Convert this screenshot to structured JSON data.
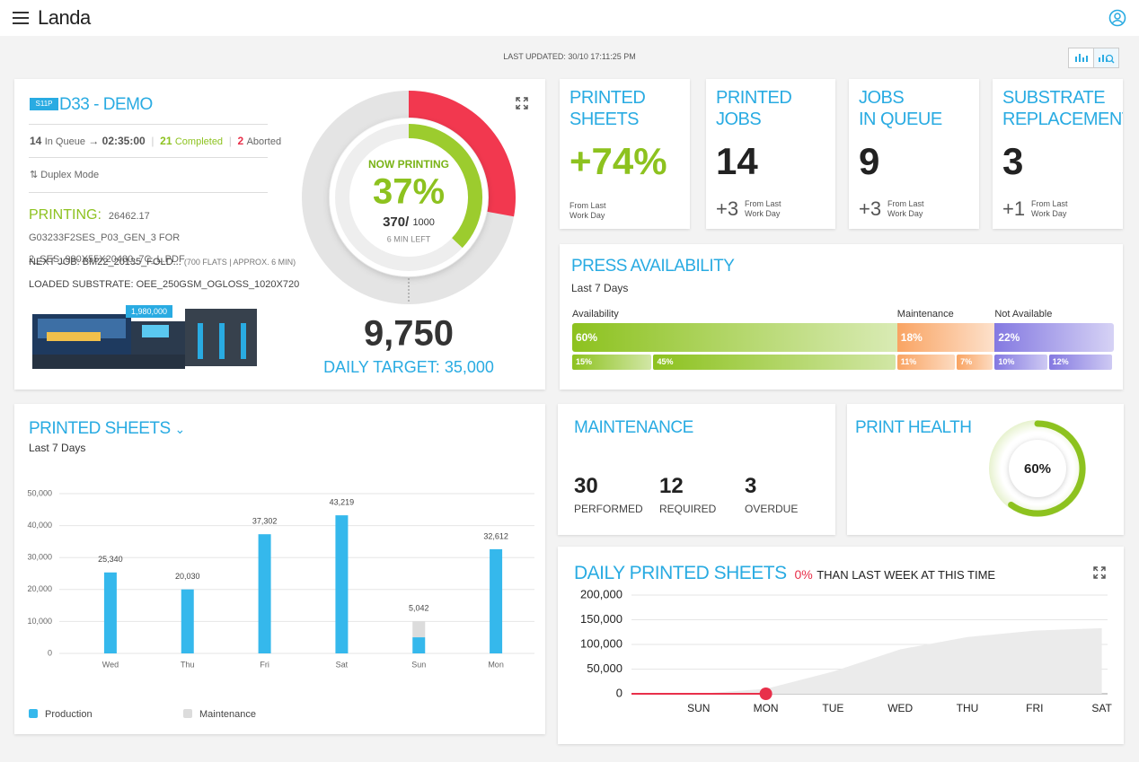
{
  "header": {
    "logo": "Landa"
  },
  "last_updated": "LAST UPDATED: 30/10 17:11:25 PM",
  "press": {
    "badge": "S11P",
    "name": "D33 - DEMO",
    "in_queue": "14",
    "in_queue_label": "In Queue",
    "time": "02:35:00",
    "completed": "21",
    "completed_label": "Completed",
    "aborted": "2",
    "aborted_label": "Aborted",
    "mode": "Duplex Mode",
    "printing_label": "PRINTING:",
    "printing_job": "26462.17 G03233F2SES_P03_GEN_3 FOR 2_SES_990X55X20480_7C_L.PDF",
    "next_job_label": "NEXT JOB:",
    "next_job": "BM22_20135_FOLD...",
    "next_job_detail": "(700 FLATS | APPROX. 6 MIN)",
    "substrate_label": "LOADED SUBSTRATE:",
    "substrate": "OEE_250GSM_OGLOSS_1020X720",
    "counter": "1,980,000"
  },
  "progress": {
    "label": "NOW PRINTING",
    "percent": {
      "value": 37,
      "label": "37%"
    },
    "done": "370/",
    "total": "1000",
    "time_left": "6 MIN LEFT",
    "printed_today": {
      "value": 9750,
      "label": "9,750"
    },
    "target_label": "DAILY TARGET:",
    "target": {
      "value": 35000,
      "label": "35,000"
    }
  },
  "kpis": [
    {
      "title": [
        "PRINTED",
        "SHEETS"
      ],
      "value": "+74%",
      "note": "From Last Work Day"
    },
    {
      "title": [
        "PRINTED",
        "JOBS"
      ],
      "value": "14",
      "change": "+3",
      "note": "From Last Work Day"
    },
    {
      "title": [
        "JOBS",
        "IN QUEUE"
      ],
      "value": "9",
      "change": "+3",
      "note": "From Last Work Day"
    },
    {
      "title": [
        "SUBSTRATE",
        "REPLACEMENTS"
      ],
      "value": "3",
      "change": "+1",
      "note": "From Last Work Day"
    }
  ],
  "availability": {
    "title": "PRESS AVAILABILITY",
    "subtitle": "Last 7 Days",
    "groups": [
      {
        "name": "Availability",
        "value": 60,
        "label": "60%",
        "color": "#8dc21f",
        "parts": [
          {
            "value": 15,
            "label": "15%"
          },
          {
            "value": 45,
            "label": "45%"
          }
        ]
      },
      {
        "name": "Maintenance",
        "value": 18,
        "label": "18%",
        "color": "#f9a463",
        "parts": [
          {
            "value": 11,
            "label": "11%"
          },
          {
            "value": 7,
            "label": "7%"
          }
        ]
      },
      {
        "name": "Not Available",
        "value": 22,
        "label": "22%",
        "color": "#8479e1",
        "parts": [
          {
            "value": 10,
            "label": "10%"
          },
          {
            "value": 12,
            "label": "12%"
          }
        ]
      }
    ]
  },
  "maintenance": {
    "title": "MAINTENANCE",
    "stats": [
      {
        "value": "30",
        "label": "PERFORMED"
      },
      {
        "value": "12",
        "label": "REQUIRED"
      },
      {
        "value": "3",
        "label": "OVERDUE"
      }
    ]
  },
  "health": {
    "title": "PRINT HEALTH",
    "percent": {
      "value": 60,
      "label": "60%"
    }
  },
  "sheets_chart": {
    "type": "bar",
    "title": "PRINTED SHEETS",
    "subtitle": "Last 7 Days",
    "categories": [
      "Wed",
      "Thu",
      "Fri",
      "Sat",
      "Sun",
      "Mon"
    ],
    "series": [
      {
        "name": "Production",
        "color": "#35b8ec",
        "values": [
          25340,
          20030,
          37302,
          43219,
          5042,
          32612
        ],
        "value_labels": [
          "25,340",
          "20,030",
          "37,302",
          "43,219",
          "5,042",
          "32,612"
        ]
      },
      {
        "name": "Maintenance",
        "color": "#dcdcdc",
        "values": [
          0,
          0,
          0,
          0,
          5000,
          0
        ]
      }
    ],
    "ylim": [
      0,
      50000
    ],
    "yticks": [
      0,
      {
        "value": 10000,
        "label": "10,000"
      },
      {
        "value": 20000,
        "label": "20,000"
      },
      {
        "value": 30000,
        "label": "30,000"
      },
      {
        "value": 40000,
        "label": "40,000"
      },
      {
        "value": 50000,
        "label": "50,000"
      }
    ],
    "grid": true
  },
  "daily_chart": {
    "type": "area",
    "title": "DAILY PRINTED SHEETS",
    "change": {
      "value": 0,
      "label": "0%"
    },
    "change_text": "THAN LAST WEEK AT THIS TIME",
    "categories": [
      null,
      "SUN",
      "MON",
      "TUE",
      "WED",
      "THU",
      "FRI",
      "SAT"
    ],
    "series": [
      {
        "color": "#ebebeb",
        "values": [
          null,
          0,
          10000,
          45000,
          90000,
          115000,
          128000,
          133000
        ]
      },
      {
        "color": "#e8304a",
        "values": [
          0,
          0,
          0,
          null,
          null,
          null,
          null,
          null
        ]
      }
    ],
    "ylim": [
      0,
      200000
    ],
    "yticks": [
      0,
      {
        "value": 50000,
        "label": "50,000"
      },
      {
        "value": 100000,
        "label": "100,000"
      },
      {
        "value": 150000,
        "label": "150,000"
      },
      {
        "value": 200000,
        "label": "200,000"
      }
    ],
    "grid": true
  }
}
